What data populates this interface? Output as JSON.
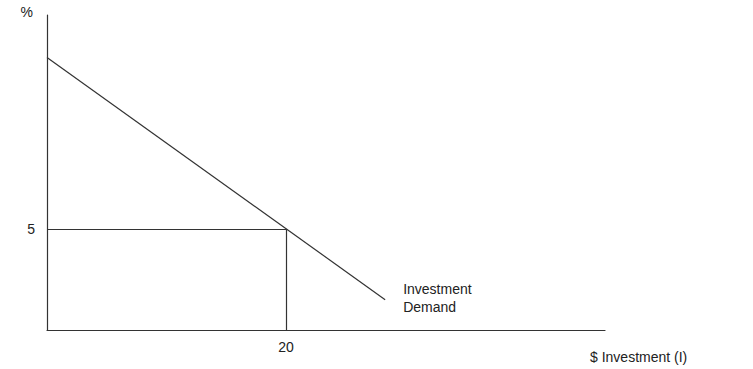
{
  "chart_data": {
    "type": "line",
    "x_label": "$ Investment (I)",
    "y_label": "%",
    "series": [
      {
        "name": "Investment Demand",
        "color": "#333333",
        "x": [
          0,
          28.3
        ],
        "values": [
          13.5,
          1.5
        ]
      }
    ],
    "xlim": [
      0,
      46.7
    ],
    "xticks": [
      20
    ],
    "ylim": [
      0,
      15.6
    ],
    "yticks": [
      5
    ],
    "grid": false
  }
}
